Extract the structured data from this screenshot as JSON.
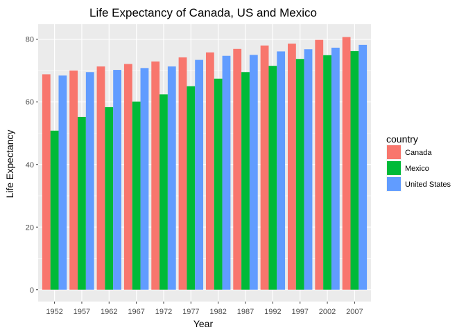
{
  "chart_data": {
    "type": "bar",
    "title": "Life Expectancy of Canada, US and Mexico",
    "xlabel": "Year",
    "ylabel": "Life Expectancy",
    "categories": [
      "1952",
      "1957",
      "1962",
      "1967",
      "1972",
      "1977",
      "1982",
      "1987",
      "1992",
      "1997",
      "2002",
      "2007"
    ],
    "series": [
      {
        "name": "Canada",
        "color": "#F8766D",
        "values": [
          68.8,
          70.0,
          71.3,
          72.1,
          72.9,
          74.2,
          75.8,
          76.9,
          78.0,
          78.6,
          79.8,
          80.7
        ]
      },
      {
        "name": "Mexico",
        "color": "#00BA38",
        "values": [
          50.8,
          55.2,
          58.3,
          60.1,
          62.4,
          65.0,
          67.4,
          69.5,
          71.5,
          73.7,
          74.9,
          76.2
        ]
      },
      {
        "name": "United States",
        "color": "#619CFF",
        "values": [
          68.4,
          69.5,
          70.2,
          70.8,
          71.3,
          73.4,
          74.7,
          75.0,
          76.1,
          76.8,
          77.3,
          78.2
        ]
      }
    ],
    "ylim": [
      -3.8,
      84.8
    ],
    "yticks": [
      0,
      20,
      40,
      60,
      80
    ],
    "grid": true,
    "legend": {
      "title": "country",
      "position": "right"
    },
    "panel_color": "#EBEBEB"
  }
}
